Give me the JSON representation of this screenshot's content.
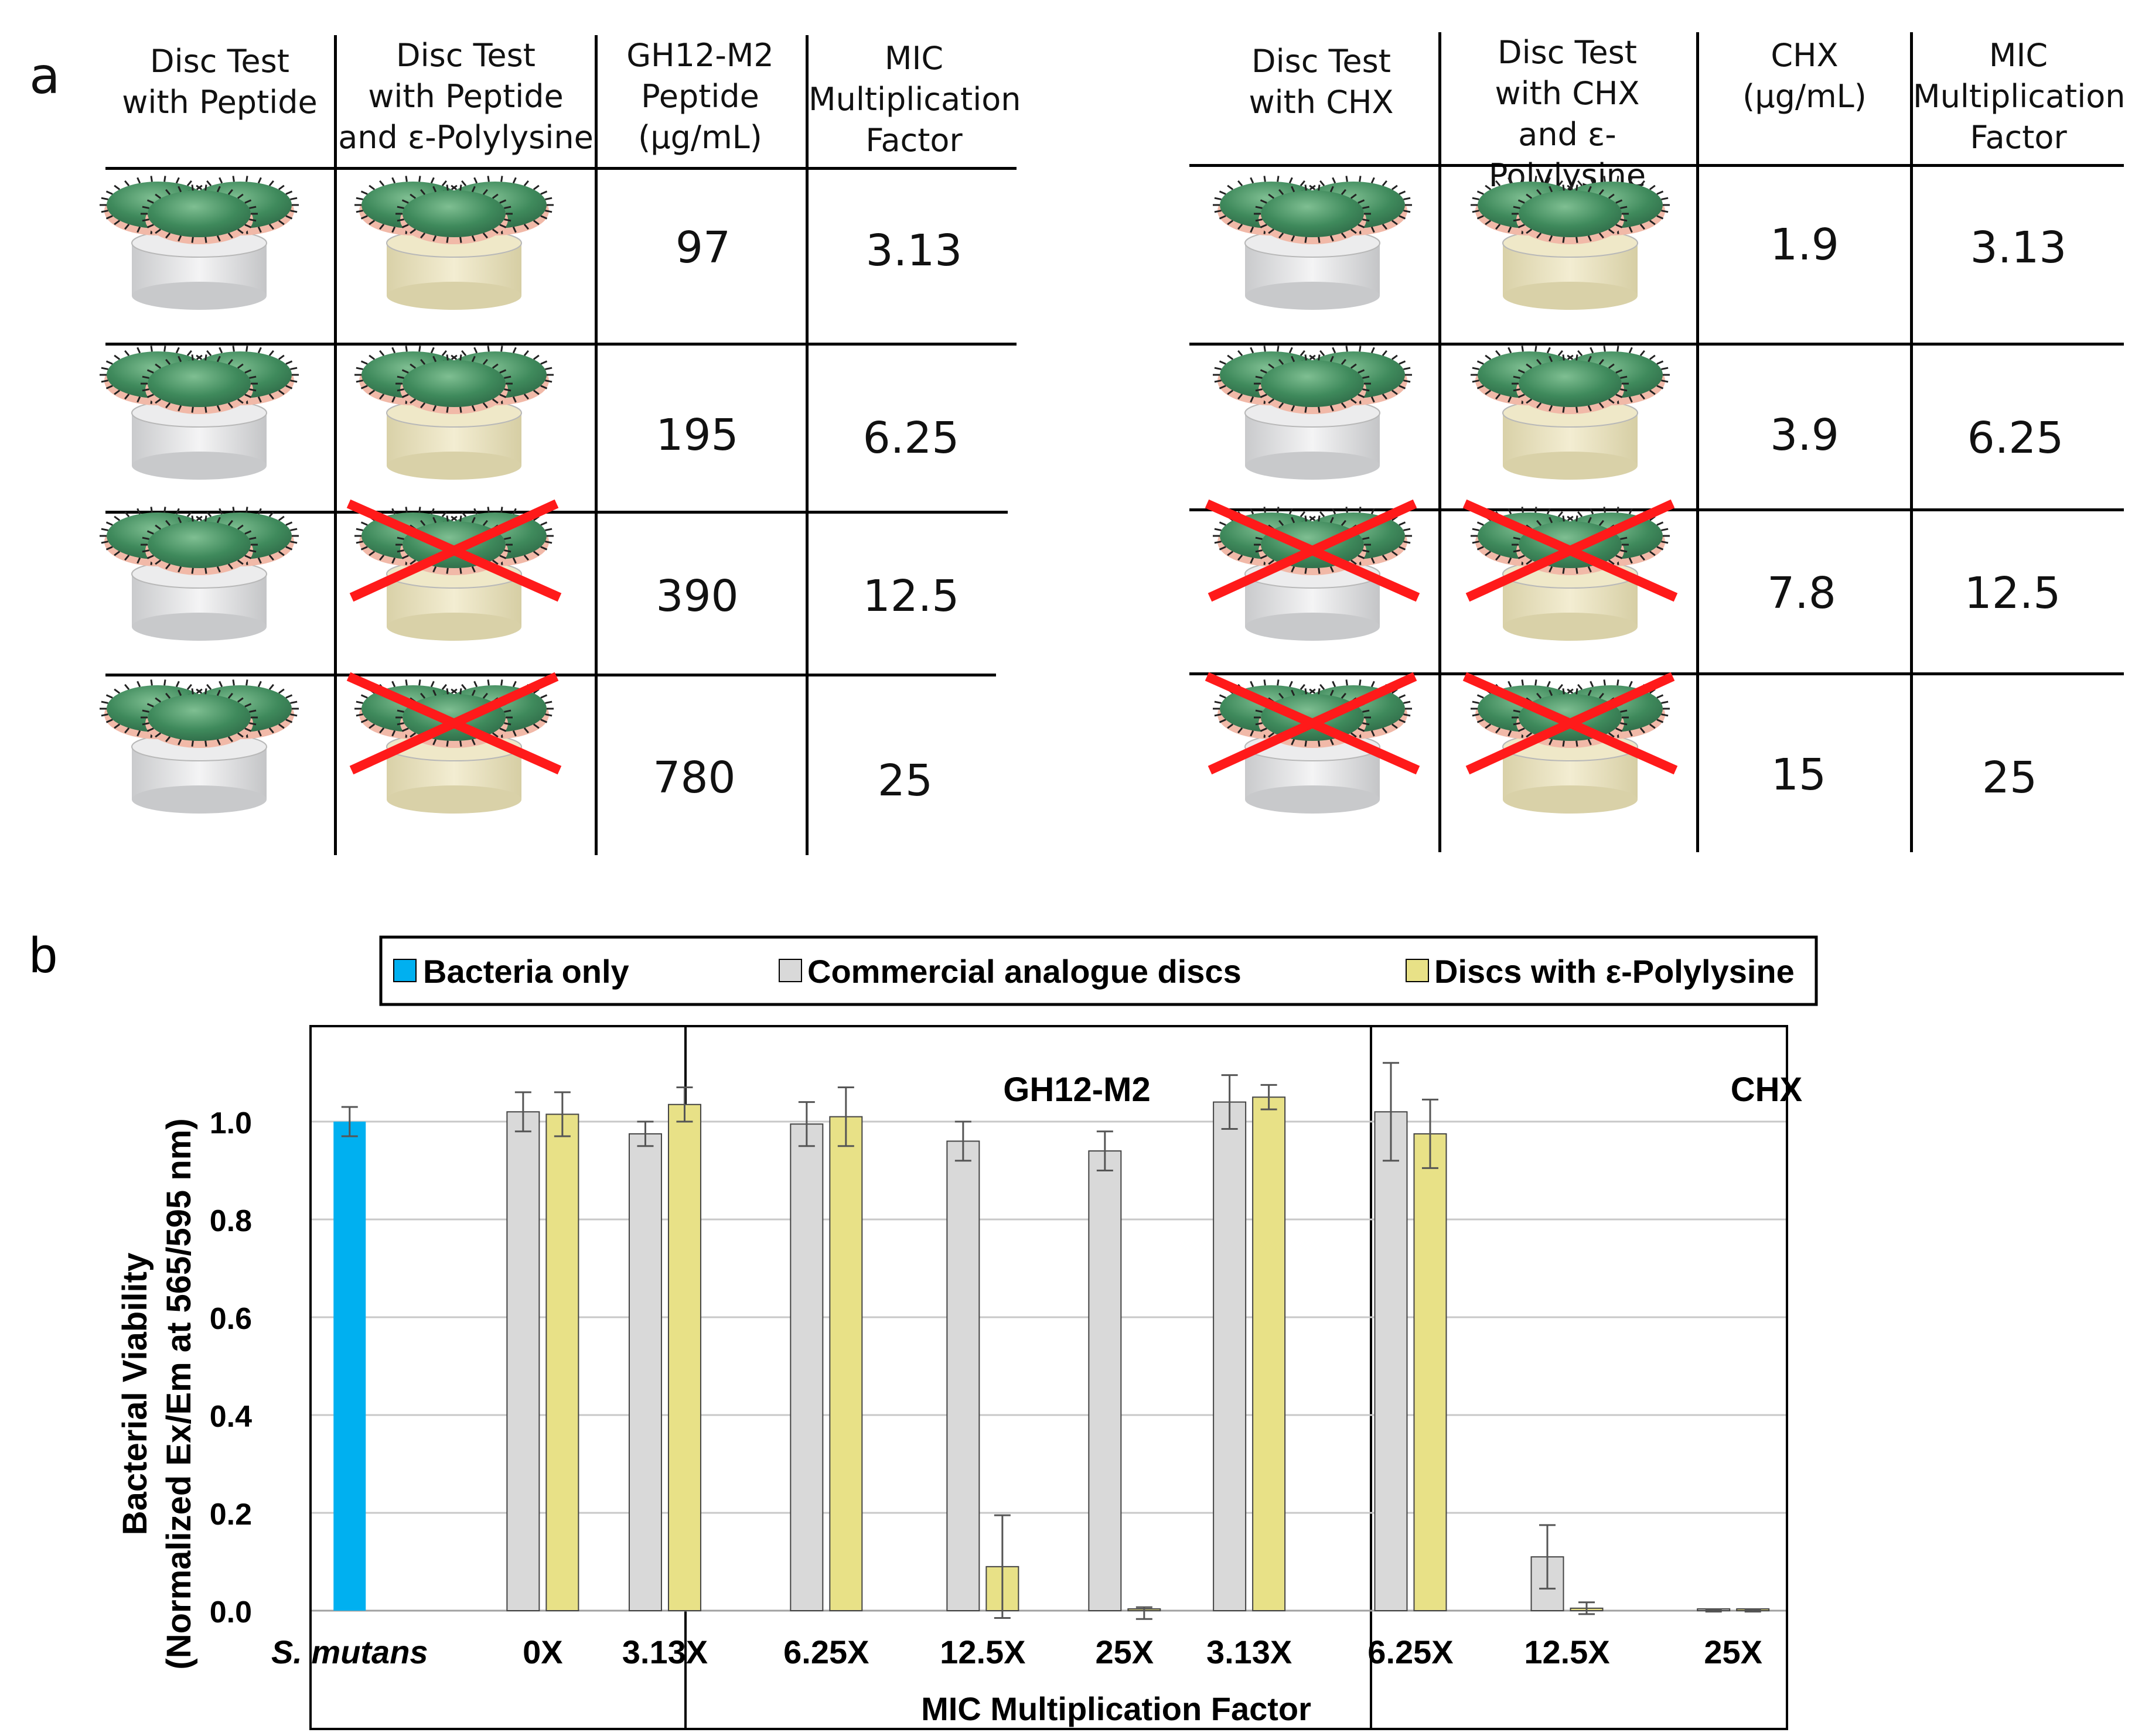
{
  "panel_a": {
    "label": "a",
    "left_table": {
      "headers": [
        "Disc Test\nwith Peptide",
        "Disc Test\nwith Peptide\nand ε-Polylysine",
        "GH12-M2\nPeptide\n(μg/mL)",
        "MIC\nMultiplication\nFactor"
      ],
      "rows": [
        {
          "conc": "97",
          "factor": "3.13",
          "plain_killed": false,
          "poly_killed": false
        },
        {
          "conc": "195",
          "factor": "6.25",
          "plain_killed": false,
          "poly_killed": false
        },
        {
          "conc": "390",
          "factor": "12.5",
          "plain_killed": false,
          "poly_killed": true
        },
        {
          "conc": "780",
          "factor": "25",
          "plain_killed": false,
          "poly_killed": true
        }
      ]
    },
    "right_table": {
      "headers": [
        "Disc Test\nwith CHX",
        "Disc Test\nwith CHX\nand ε-Polylysine",
        "CHX\n(μg/mL)",
        "MIC\nMultiplication\nFactor"
      ],
      "rows": [
        {
          "conc": "1.9",
          "factor": "3.13",
          "plain_killed": false,
          "poly_killed": false
        },
        {
          "conc": "3.9",
          "factor": "6.25",
          "plain_killed": false,
          "poly_killed": false
        },
        {
          "conc": "7.8",
          "factor": "12.5",
          "plain_killed": true,
          "poly_killed": true
        },
        {
          "conc": "15",
          "factor": "25",
          "plain_killed": true,
          "poly_killed": true
        }
      ]
    },
    "colors": {
      "plain_disc": "#d9dadb",
      "poly_disc": "#e6dfc0",
      "bacteria": "#4e9a6a",
      "bacteria_edge": "#f1b9a8",
      "cross": "#ff1a1a"
    }
  },
  "chart_data": {
    "type": "bar",
    "panel_label": "b",
    "title": "",
    "xlabel": "MIC Multiplication Factor",
    "ylabel_line1": "Bacterial Viability",
    "ylabel_line2": "(Normalized Ex/Em at 565/595 nm)",
    "ylim": [
      0,
      1.2
    ],
    "yticks": [
      "0.0",
      "0.2",
      "0.4",
      "0.6",
      "0.8",
      "1.0"
    ],
    "grid": true,
    "legend_position": "top",
    "legend": [
      {
        "name": "Bacteria only",
        "color": "#00b0f0"
      },
      {
        "name": "Commercial analogue discs",
        "color": "#d9d9d9"
      },
      {
        "name": "Discs with ε-Polylysine",
        "color": "#e8e187"
      }
    ],
    "group_labels": [
      {
        "text": "GH12-M2",
        "between": [
          2,
          5
        ]
      },
      {
        "text": "CHX",
        "between": [
          6,
          9
        ]
      }
    ],
    "categories": [
      "S. mutans",
      "0X",
      "3.13X",
      "6.25X",
      "12.5X",
      "25X",
      "3.13X",
      "6.25X",
      "12.5X",
      "25X"
    ],
    "series": [
      {
        "name": "Bacteria only",
        "values": [
          1.0,
          null,
          null,
          null,
          null,
          null,
          null,
          null,
          null,
          null
        ],
        "errors": [
          0.03,
          null,
          null,
          null,
          null,
          null,
          null,
          null,
          null,
          null
        ]
      },
      {
        "name": "Commercial analogue discs",
        "values": [
          null,
          1.02,
          0.975,
          0.995,
          0.96,
          0.94,
          1.04,
          1.02,
          0.11,
          0.0
        ],
        "errors": [
          null,
          0.04,
          0.025,
          0.045,
          0.04,
          0.04,
          0.055,
          0.1,
          0.065,
          0.002
        ]
      },
      {
        "name": "Discs with ε-Polylysine",
        "values": [
          null,
          1.015,
          1.035,
          1.01,
          0.09,
          -0.005,
          1.05,
          0.975,
          0.005,
          0.0
        ],
        "errors": [
          null,
          0.045,
          0.035,
          0.06,
          0.105,
          0.012,
          0.025,
          0.07,
          0.012,
          0.002
        ]
      }
    ]
  }
}
